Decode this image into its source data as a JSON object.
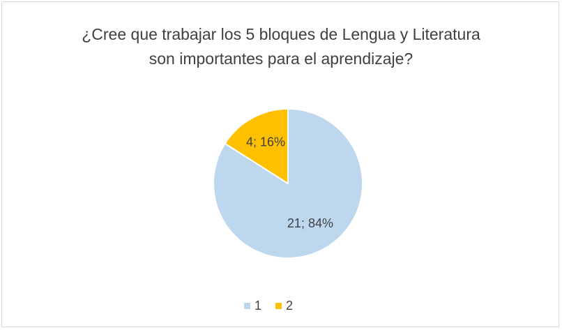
{
  "chart_data": {
    "type": "pie",
    "title": "¿Cree que trabajar los 5 bloques de Lengua y Literatura son importantes para el aprendizaje?",
    "categories": [
      "1",
      "2"
    ],
    "values": [
      21,
      4
    ],
    "value_labels": [
      "21; 84%",
      "4; 16%"
    ],
    "colors": [
      "#bdd7ee",
      "#ffc000"
    ],
    "legend": "bottom"
  }
}
